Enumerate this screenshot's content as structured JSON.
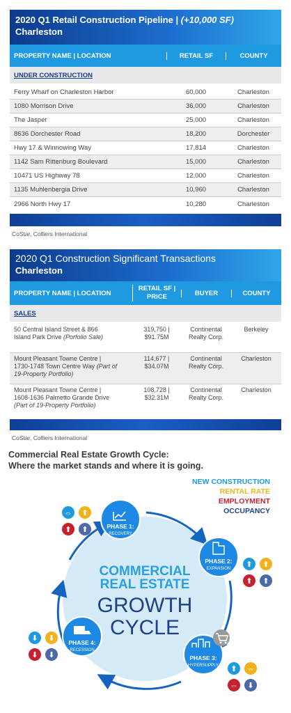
{
  "table1": {
    "title": "2020 Q1 Retail Construction Pipeline",
    "title_sep": " | ",
    "title_accent": "(+10,000 SF)",
    "subtitle": "Charleston",
    "headers": [
      "PROPERTY NAME | LOCATION",
      "RETAIL SF",
      "COUNTY"
    ],
    "section": "UNDER CONSTRUCTION",
    "rows": [
      {
        "name": "Ferry Wharf on Charleston Harbor",
        "sf": "60,000",
        "county": "Charleston"
      },
      {
        "name": "1080 Morrison Drive",
        "sf": "36,000",
        "county": "Charleston"
      },
      {
        "name": "The Jasper",
        "sf": "25,000",
        "county": "Charleston"
      },
      {
        "name": "8636 Dorchester Road",
        "sf": "18,200",
        "county": "Dorchester"
      },
      {
        "name": "Hwy 17 & Winnowing Way",
        "sf": "17,814",
        "county": "Charleston"
      },
      {
        "name": "1142 Sam Rittenburg Boulevard",
        "sf": "15,000",
        "county": "Charleston"
      },
      {
        "name": "10471 US Highway 78",
        "sf": "12,000",
        "county": "Charleston"
      },
      {
        "name": "1135 Muhlenbergia Drive",
        "sf": "10,960",
        "county": "Charleston"
      },
      {
        "name": "2966 North Hwy 17",
        "sf": "10,280",
        "county": "Charleston"
      }
    ],
    "source": "CoStar, Colliers International"
  },
  "table2": {
    "title": "2020 Q1 Construction Significant Transactions",
    "subtitle": "Charleston",
    "headers": [
      "PROPERTY NAME | LOCATION",
      "RETAIL SF | PRICE",
      "BUYER",
      "COUNTY"
    ],
    "section": "SALES",
    "rows": [
      {
        "name1": "50 Central Island Street & 866",
        "name2": "Island Park Drive ",
        "name2i": "(Porfolio Sale)",
        "name3": "",
        "name3i": "",
        "sf": "319,750 |",
        "price": "$91.75M",
        "buyer1": "Continental",
        "buyer2": "Realty Corp.",
        "county": "Berkeley"
      },
      {
        "name1": "Mount Pleasant Towne Centre |",
        "name2": "1730-1748 Town Centre Way ",
        "name2i": "(Part of",
        "name3": "",
        "name3i": "19-Property Portfolio)",
        "sf": "114,677 |",
        "price": "$34.07M",
        "buyer1": "Continental",
        "buyer2": "Realty Corp.",
        "county": "Charleston"
      },
      {
        "name1": "Mount Pleasant Towne Centre |",
        "name2": "1608-1636 Palmetto Grande Drive",
        "name2i": "",
        "name3": "",
        "name3i": "(Part of 19-Property Portfolio)",
        "sf": "108,728 |",
        "price": "$32.31M",
        "buyer1": "Continental",
        "buyer2": "Realty Corp.",
        "county": "Charleston"
      }
    ],
    "source": "CoStar, Colliers International"
  },
  "cycle": {
    "heading1": "Commercial Real Estate Growth Cycle:",
    "heading2": "Where the market stands and where it is going.",
    "legend": [
      {
        "label": "NEW CONSTRUCTION",
        "color": "#1e9be0"
      },
      {
        "label": "RENTAL RATE",
        "color": "#f2b21b"
      },
      {
        "label": "EMPLOYMENT",
        "color": "#c8202f"
      },
      {
        "label": "OCCUPANCY",
        "color": "#1d3f8c"
      }
    ],
    "center": {
      "line1": "COMMERCIAL",
      "line2": "REAL ESTATE",
      "line3": "GROWTH",
      "line4": "CYCLE"
    },
    "phases": [
      {
        "title": "PHASE 1:",
        "name": "RECOVERY"
      },
      {
        "title": "PHASE 2:",
        "name": "EXPANSION"
      },
      {
        "title": "PHASE 3:",
        "name": "HYPERSUPPLY"
      },
      {
        "title": "PHASE 4:",
        "name": "RECESSION"
      }
    ],
    "colors": {
      "blue": "#1e9be0",
      "yellow": "#f2b21b",
      "red": "#c8202f",
      "navy": "#4c6aa8",
      "light": "#cfe6f6",
      "ring": "#1565c0"
    }
  }
}
